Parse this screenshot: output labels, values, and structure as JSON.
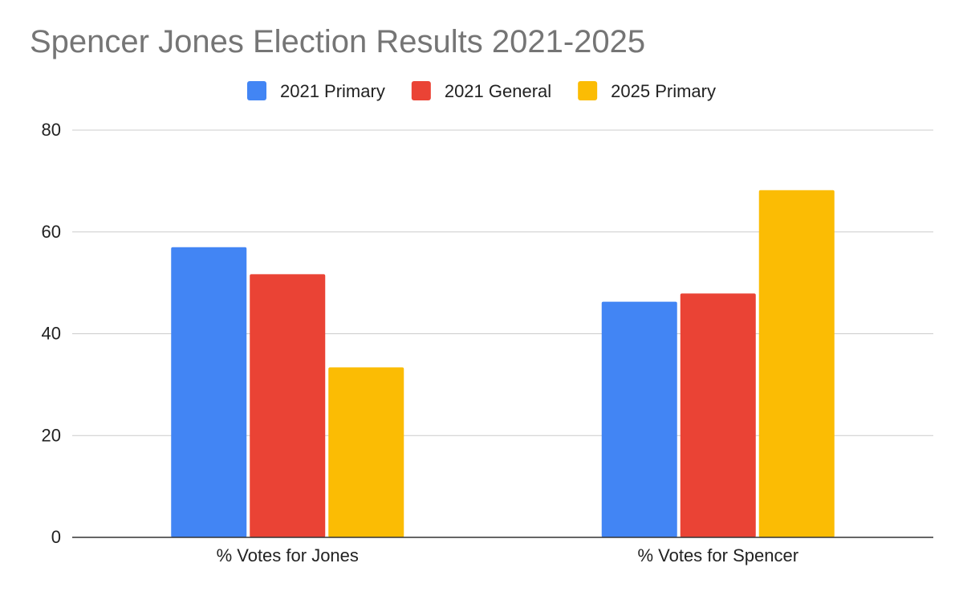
{
  "chart_data": {
    "type": "bar",
    "title": "Spencer Jones Election Results 2021-2025",
    "categories": [
      "% Votes for Jones",
      "% Votes for Spencer"
    ],
    "series": [
      {
        "name": "2021 Primary",
        "color": "#4285F4",
        "values": [
          57.0,
          46.3
        ]
      },
      {
        "name": "2021 General",
        "color": "#EA4335",
        "values": [
          51.7,
          47.9
        ]
      },
      {
        "name": "2025 Primary",
        "color": "#FBBC04",
        "values": [
          33.4,
          68.2
        ]
      }
    ],
    "xlabel": "",
    "ylabel": "",
    "ylim": [
      0,
      80
    ],
    "yticks": [
      0,
      20,
      40,
      60,
      80
    ],
    "grid": true,
    "legend_position": "top-center"
  }
}
